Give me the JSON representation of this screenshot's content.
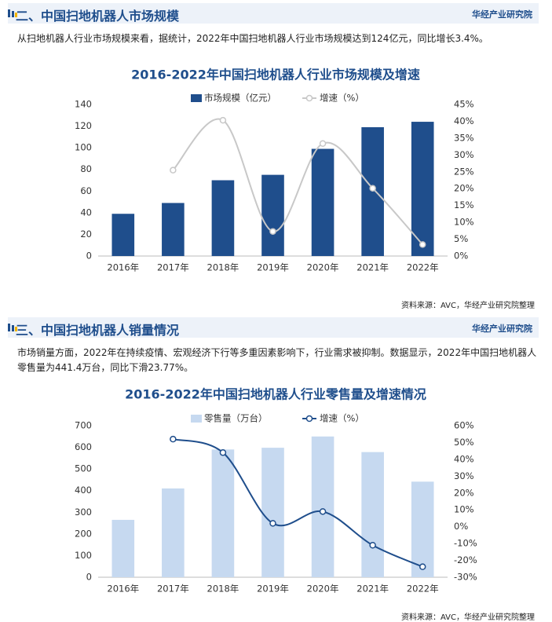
{
  "sections": [
    {
      "heading": "二、中国扫地机器人市场规模",
      "brand": "华经产业研究院",
      "text": "从扫地机器人行业市场规模来看，据统计，2022年中国扫地机器人行业市场规模达到124亿元，同比增长3.4%。",
      "source": "资料来源：AVC，华经产业研究院整理"
    },
    {
      "heading": "三、中国扫地机器人销量情况",
      "brand": "华经产业研究院",
      "text": "市场销量方面，2022年在持续疫情、宏观经济下行等多重因素影响下，行业需求被抑制。数据显示，2022年中国扫地机器人零售量为441.4万台，同比下滑23.77%。",
      "source": "资料来源：AVC，华经产业研究院整理"
    }
  ],
  "chart_data": [
    {
      "type": "bar",
      "title": "2016-2022年中国扫地机器人行业市场规模及增速",
      "categories": [
        "2016年",
        "2017年",
        "2018年",
        "2019年",
        "2020年",
        "2021年",
        "2022年"
      ],
      "series": [
        {
          "name": "市场规模（亿元）",
          "color": "#1f4e8c",
          "values": [
            39,
            49,
            70,
            75,
            99,
            119,
            124
          ]
        },
        {
          "name": "增速（%）",
          "type": "line",
          "axis": "y2",
          "color": "#c8c8c8",
          "values": [
            null,
            25.5,
            40.3,
            7.3,
            33.4,
            20.1,
            3.4
          ]
        }
      ],
      "ylim": [
        0,
        140
      ],
      "yticks": [
        0,
        20,
        40,
        60,
        80,
        100,
        120,
        140
      ],
      "y2lim": [
        0,
        45
      ],
      "y2ticks": [
        {
          "value": 0,
          "label": "0%"
        },
        {
          "value": 5,
          "label": "5%"
        },
        {
          "value": 10,
          "label": "10%"
        },
        {
          "value": 15,
          "label": "15%"
        },
        {
          "value": 20,
          "label": "20%"
        },
        {
          "value": 25,
          "label": "25%"
        },
        {
          "value": 30,
          "label": "30%"
        },
        {
          "value": 35,
          "label": "35%"
        },
        {
          "value": 40,
          "label": "40%"
        },
        {
          "value": 45,
          "label": "45%"
        }
      ],
      "grid": false
    },
    {
      "type": "bar",
      "title": "2016-2022年中国扫地机器人行业零售量及增速情况",
      "categories": [
        "2016年",
        "2017年",
        "2018年",
        "2019年",
        "2020年",
        "2021年",
        "2022年"
      ],
      "series": [
        {
          "name": "零售量（万台）",
          "color": "#c6d9f0",
          "values": [
            265,
            410,
            590,
            598,
            650,
            578,
            441.4
          ]
        },
        {
          "name": "增速（%）",
          "type": "line",
          "axis": "y2",
          "color": "#1f4e8c",
          "values": [
            null,
            52,
            44,
            2,
            9,
            -11,
            -23.77
          ]
        }
      ],
      "ylim": [
        0,
        700
      ],
      "yticks": [
        0,
        100,
        200,
        300,
        400,
        500,
        600,
        700
      ],
      "y2lim": [
        -30,
        60
      ],
      "y2ticks": [
        {
          "value": -30,
          "label": "-30%"
        },
        {
          "value": -20,
          "label": "-20%"
        },
        {
          "value": -10,
          "label": "-10%"
        },
        {
          "value": 0,
          "label": "0%"
        },
        {
          "value": 10,
          "label": "10%"
        },
        {
          "value": 20,
          "label": "20%"
        },
        {
          "value": 30,
          "label": "30%"
        },
        {
          "value": 40,
          "label": "40%"
        },
        {
          "value": 50,
          "label": "50%"
        },
        {
          "value": 60,
          "label": "60%"
        }
      ],
      "grid": false
    }
  ]
}
